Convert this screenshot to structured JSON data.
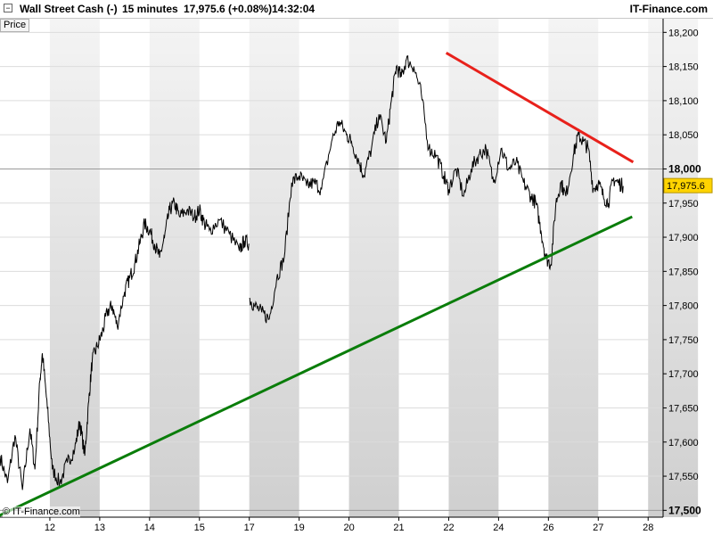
{
  "header": {
    "instrument": "Wall Street Cash (-)",
    "timeframe": "15 minutes",
    "last_change": "17,975.6 (+0.08%)",
    "time": "14:32:04",
    "brand": "IT-Finance.com"
  },
  "price_tab": "Price",
  "credit": "© IT-Finance.com",
  "colors": {
    "resistance": "#e8211b",
    "support": "#0a7d0a",
    "price_line": "#000000",
    "band_dark": "#cfcfcf",
    "band_light": "#f4f4f4"
  },
  "chart_data": {
    "type": "line",
    "interval": "15 minutes",
    "ylim": [
      17490,
      18220
    ],
    "y_ticks": [
      {
        "value": 17500,
        "label": "17,500",
        "major": true
      },
      {
        "value": 17550,
        "label": "17,550"
      },
      {
        "value": 17600,
        "label": "17,600"
      },
      {
        "value": 17650,
        "label": "17,650"
      },
      {
        "value": 17700,
        "label": "17,700"
      },
      {
        "value": 17750,
        "label": "17,750"
      },
      {
        "value": 17800,
        "label": "17,800"
      },
      {
        "value": 17850,
        "label": "17,850"
      },
      {
        "value": 17900,
        "label": "17,900"
      },
      {
        "value": 17950,
        "label": "17,950"
      },
      {
        "value": 18000,
        "label": "18,000",
        "major": true
      },
      {
        "value": 18050,
        "label": "18,050"
      },
      {
        "value": 18100,
        "label": "18,100"
      },
      {
        "value": 18150,
        "label": "18,150"
      },
      {
        "value": 18200,
        "label": "18,200"
      }
    ],
    "x_ticks": [
      "12",
      "13",
      "14",
      "15",
      "17",
      "19",
      "20",
      "21",
      "22",
      "24",
      "26",
      "27",
      "28"
    ],
    "last_price": {
      "value": 17975.6,
      "label": "17,975.6"
    },
    "series": [
      {
        "segments": [
          [
            [
              11.0,
              17580
            ],
            [
              11.15,
              17540
            ],
            [
              11.3,
              17610
            ],
            [
              11.45,
              17530
            ],
            [
              11.6,
              17620
            ],
            [
              11.7,
              17560
            ],
            [
              11.8,
              17690
            ],
            [
              11.85,
              17730
            ],
            [
              11.95,
              17650
            ],
            [
              12.05,
              17560
            ],
            [
              12.2,
              17540
            ],
            [
              12.35,
              17570
            ],
            [
              12.5,
              17590
            ],
            [
              12.6,
              17630
            ],
            [
              12.7,
              17580
            ],
            [
              12.78,
              17660
            ],
            [
              12.85,
              17720
            ],
            [
              12.95,
              17740
            ],
            [
              13.05,
              17760
            ],
            [
              13.15,
              17790
            ],
            [
              13.25,
              17800
            ],
            [
              13.35,
              17770
            ],
            [
              13.5,
              17820
            ],
            [
              13.6,
              17840
            ],
            [
              13.7,
              17860
            ],
            [
              13.8,
              17890
            ],
            [
              13.9,
              17920
            ],
            [
              14.0,
              17910
            ],
            [
              14.1,
              17890
            ],
            [
              14.2,
              17870
            ],
            [
              14.3,
              17900
            ],
            [
              14.4,
              17940
            ],
            [
              14.5,
              17950
            ],
            [
              14.6,
              17930
            ],
            [
              14.75,
              17940
            ],
            [
              14.9,
              17930
            ],
            [
              15.0,
              17940
            ],
            [
              15.1,
              17920
            ],
            [
              15.2,
              17910
            ],
            [
              15.4,
              17925
            ],
            [
              15.6,
              17905
            ],
            [
              15.8,
              17880
            ],
            [
              15.9,
              17895
            ],
            [
              16.0,
              17890
            ]
          ],
          [
            [
              16.0,
              17810
            ],
            [
              16.1,
              17800
            ],
            [
              16.25,
              17790
            ],
            [
              16.4,
              17780
            ],
            [
              16.55,
              17840
            ],
            [
              16.7,
              17870
            ],
            [
              16.85,
              17980
            ],
            [
              17.0,
              17990
            ],
            [
              17.15,
              17975
            ],
            [
              17.3,
              17980
            ],
            [
              17.45,
              17970
            ],
            [
              17.65,
              18040
            ],
            [
              17.8,
              18070
            ],
            [
              17.95,
              18050
            ],
            [
              18.05,
              18040
            ],
            [
              18.2,
              18010
            ],
            [
              18.3,
              17990
            ],
            [
              18.45,
              18030
            ],
            [
              18.6,
              18080
            ],
            [
              18.75,
              18040
            ],
            [
              18.85,
              18100
            ],
            [
              18.95,
              18150
            ],
            [
              19.05,
              18135
            ],
            [
              19.15,
              18160
            ],
            [
              19.3,
              18150
            ],
            [
              19.45,
              18110
            ],
            [
              19.6,
              18030
            ],
            [
              19.75,
              18020
            ],
            [
              19.9,
              17990
            ],
            [
              20.0,
              17970
            ],
            [
              20.15,
              18000
            ],
            [
              20.3,
              17960
            ],
            [
              20.45,
              18000
            ],
            [
              20.6,
              18020
            ],
            [
              20.75,
              18030
            ],
            [
              20.9,
              17980
            ],
            [
              21.05,
              18030
            ],
            [
              21.2,
              18000
            ],
            [
              21.35,
              18010
            ],
            [
              21.5,
              17980
            ],
            [
              21.65,
              17960
            ],
            [
              21.75,
              17950
            ],
            [
              21.85,
              17910
            ],
            [
              21.95,
              17870
            ],
            [
              22.05,
              17860
            ],
            [
              22.15,
              17950
            ],
            [
              22.25,
              17980
            ],
            [
              22.35,
              17960
            ],
            [
              22.5,
              18020
            ],
            [
              22.6,
              18050
            ],
            [
              22.7,
              18040
            ],
            [
              22.8,
              18030
            ],
            [
              22.9,
              17970
            ],
            [
              23.0,
              17980
            ],
            [
              23.1,
              17960
            ],
            [
              23.2,
              17950
            ],
            [
              23.3,
              17985
            ],
            [
              23.4,
              17980
            ],
            [
              23.5,
              17975
            ]
          ]
        ]
      }
    ],
    "trendlines": [
      {
        "role": "resistance",
        "from": [
          19.95,
          18170
        ],
        "to": [
          23.7,
          18010
        ]
      },
      {
        "role": "support",
        "from": [
          10.92,
          17490
        ],
        "to": [
          23.68,
          17930
        ]
      }
    ]
  }
}
